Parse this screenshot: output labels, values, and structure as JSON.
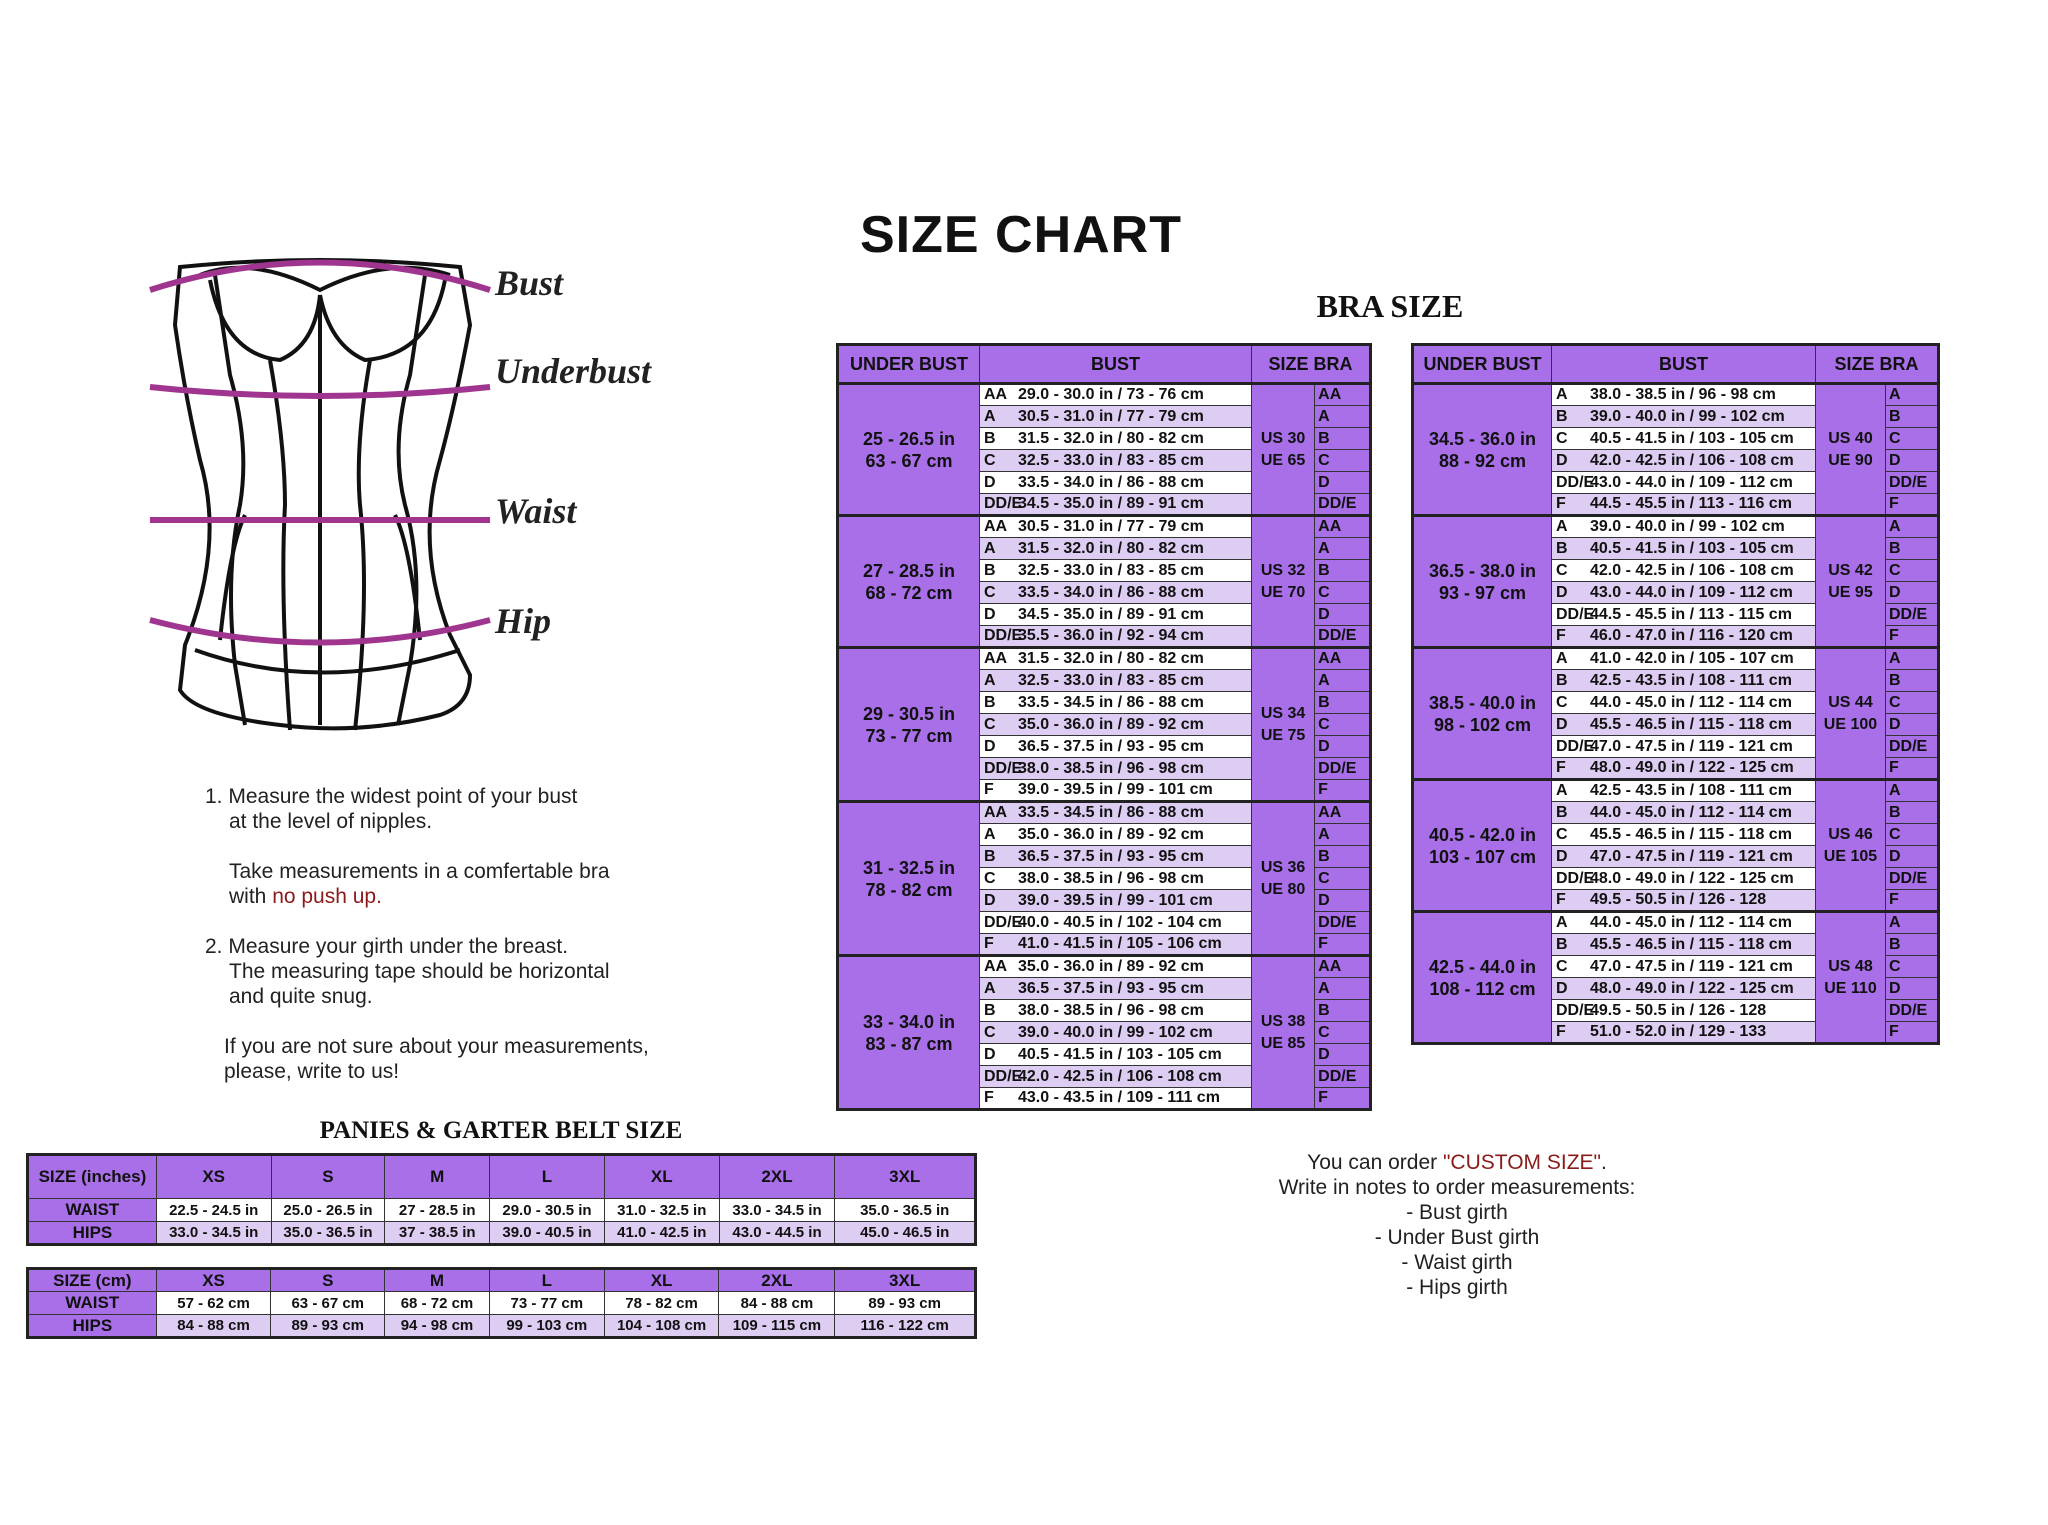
{
  "title": "SIZE CHART",
  "bra_title": "BRA SIZE",
  "colors": {
    "header_purple": "#a86fe8",
    "row_lavender": "#ddcdf2",
    "measure_line": "#a0358f",
    "accent_red": "#8b1a1a"
  },
  "diagram_labels": {
    "bust": "Bust",
    "underbust": "Underbust",
    "waist": "Waist",
    "hip": "Hip"
  },
  "instructions": {
    "step1_line1": "1. Measure the widest point of your bust",
    "step1_line2": "at the level of nipples.",
    "bra_note_line1": "Take measurements in a comfertable bra",
    "bra_note_pre": "with ",
    "bra_note_red": "no push up.",
    "step2_line1": "2. Measure your girth under the breast.",
    "step2_line2": "The measuring tape should be horizontal",
    "step2_line3": "and quite snug.",
    "unsure_line1": "If you are not sure about your measurements,",
    "unsure_line2": "please, write to us!"
  },
  "bra_headers": [
    "UNDER BUST",
    "BUST",
    "SIZE BRA"
  ],
  "bra_left": [
    {
      "ub": [
        "25 - 26.5 in",
        "63 - 67 cm"
      ],
      "us": [
        "US 30",
        "UE 65"
      ],
      "rows": [
        [
          "AA",
          "29.0 - 30.0 in / 73 - 76 cm"
        ],
        [
          "A",
          "30.5 - 31.0  in / 77 - 79 cm"
        ],
        [
          "B",
          "31.5 - 32.0 in / 80 - 82 cm"
        ],
        [
          "C",
          "32.5 - 33.0 in / 83 - 85 cm"
        ],
        [
          "D",
          "33.5 - 34.0 in / 86 - 88 cm"
        ],
        [
          "DD/E",
          "34.5 - 35.0 in / 89 - 91 cm"
        ]
      ]
    },
    {
      "ub": [
        "27 - 28.5 in",
        "68 - 72 cm"
      ],
      "us": [
        "US 32",
        "UE 70"
      ],
      "rows": [
        [
          "AA",
          "30.5 - 31.0  in / 77 - 79 cm"
        ],
        [
          "A",
          "31.5 - 32.0 in / 80 - 82 cm"
        ],
        [
          "B",
          "32.5 - 33.0 in / 83 - 85 cm"
        ],
        [
          "C",
          "33.5 - 34.0 in / 86 - 88 cm"
        ],
        [
          "D",
          "34.5 - 35.0 in / 89 - 91 cm"
        ],
        [
          "DD/E",
          "35.5 - 36.0 in / 92 - 94 cm"
        ]
      ]
    },
    {
      "ub": [
        "29 - 30.5 in",
        "73 - 77 cm"
      ],
      "us": [
        "US 34",
        "UE 75"
      ],
      "rows": [
        [
          "AA",
          "31.5 - 32.0 in / 80 - 82 cm"
        ],
        [
          "A",
          "32.5 - 33.0 in / 83 - 85 cm"
        ],
        [
          "B",
          "33.5 - 34.5 in / 86 - 88 cm"
        ],
        [
          "C",
          "35.0 - 36.0 in / 89 - 92 cm"
        ],
        [
          "D",
          "36.5 - 37.5 in / 93 - 95 cm"
        ],
        [
          "DD/E",
          "38.0 - 38.5 in / 96 - 98 cm"
        ],
        [
          "F",
          "39.0 - 39.5 in / 99 - 101 cm"
        ]
      ]
    },
    {
      "ub": [
        "31 - 32.5 in",
        "78 - 82 cm"
      ],
      "us": [
        "US 36",
        "UE 80"
      ],
      "rows": [
        [
          "AA",
          "33.5 - 34.5 in / 86 - 88 cm"
        ],
        [
          "A",
          "35.0 - 36.0 in / 89 - 92 cm"
        ],
        [
          "B",
          "36.5 - 37.5 in / 93 - 95 cm"
        ],
        [
          "C",
          "38.0 - 38.5 in / 96 - 98 cm"
        ],
        [
          "D",
          "39.0 - 39.5 in / 99 - 101 cm"
        ],
        [
          "DD/E",
          "40.0 - 40.5 in / 102 - 104 cm"
        ],
        [
          "F",
          "41.0 - 41.5 in / 105 - 106 cm"
        ]
      ]
    },
    {
      "ub": [
        "33 - 34.0 in",
        "83 - 87 cm"
      ],
      "us": [
        "US 38",
        "UE 85"
      ],
      "rows": [
        [
          "AA",
          "35.0 - 36.0 in / 89 - 92 cm"
        ],
        [
          "A",
          "36.5 - 37.5 in / 93 - 95 cm"
        ],
        [
          "B",
          "38.0 - 38.5 in / 96 - 98 cm"
        ],
        [
          "C",
          "39.0 - 40.0 in / 99 - 102 cm"
        ],
        [
          "D",
          "40.5 - 41.5 in / 103 - 105 cm"
        ],
        [
          "DD/E",
          "42.0 - 42.5 in / 106 - 108 cm"
        ],
        [
          "F",
          "43.0 - 43.5 in / 109 - 111 cm"
        ]
      ]
    }
  ],
  "bra_right": [
    {
      "ub": [
        "34.5 - 36.0 in",
        "88 - 92 cm"
      ],
      "us": [
        "US 40",
        "UE 90"
      ],
      "rows": [
        [
          "A",
          "38.0 - 38.5 in / 96 - 98 cm"
        ],
        [
          "B",
          "39.0 - 40.0 in / 99 - 102 cm"
        ],
        [
          "C",
          "40.5 - 41.5 in / 103 - 105 cm"
        ],
        [
          "D",
          "42.0 - 42.5 in / 106 - 108 cm"
        ],
        [
          "DD/E",
          "43.0 - 44.0 in / 109 - 112 cm"
        ],
        [
          "F",
          "44.5 - 45.5 in / 113 - 116 cm"
        ]
      ]
    },
    {
      "ub": [
        "36.5 - 38.0 in",
        "93 - 97 cm"
      ],
      "us": [
        "US 42",
        "UE 95"
      ],
      "rows": [
        [
          "A",
          "39.0 - 40.0 in / 99 - 102 cm"
        ],
        [
          "B",
          "40.5 - 41.5 in / 103 - 105 cm"
        ],
        [
          "C",
          "42.0 - 42.5 in / 106 - 108 cm"
        ],
        [
          "D",
          "43.0 - 44.0 in / 109 - 112 cm"
        ],
        [
          "DD/E",
          "44.5 - 45.5 in / 113 - 115 cm"
        ],
        [
          "F",
          "46.0 - 47.0 in / 116 - 120 cm"
        ]
      ]
    },
    {
      "ub": [
        "38.5 - 40.0 in",
        "98 - 102 cm"
      ],
      "us": [
        "US 44",
        "UE 100"
      ],
      "rows": [
        [
          "A",
          "41.0 - 42.0 in / 105 - 107 cm"
        ],
        [
          "B",
          "42.5 - 43.5 in / 108 - 111 cm"
        ],
        [
          "C",
          "44.0 - 45.0 in / 112 - 114 cm"
        ],
        [
          "D",
          "45.5 - 46.5 in / 115 - 118 cm"
        ],
        [
          "DD/E",
          "47.0 - 47.5 in / 119 - 121 cm"
        ],
        [
          "F",
          "48.0 - 49.0 in / 122 - 125 cm"
        ]
      ]
    },
    {
      "ub": [
        "40.5 - 42.0 in",
        "103 - 107 cm"
      ],
      "us": [
        "US 46",
        "UE 105"
      ],
      "rows": [
        [
          "A",
          "42.5 - 43.5 in / 108 - 111 cm"
        ],
        [
          "B",
          "44.0 - 45.0 in / 112 - 114 cm"
        ],
        [
          "C",
          "45.5 - 46.5 in / 115 - 118 cm"
        ],
        [
          "D",
          "47.0 - 47.5 in / 119 - 121 cm"
        ],
        [
          "DD/E",
          "48.0 - 49.0 in / 122 - 125 cm"
        ],
        [
          "F",
          "49.5 - 50.5 in / 126 - 128"
        ]
      ]
    },
    {
      "ub": [
        "42.5 - 44.0 in",
        "108 - 112 cm"
      ],
      "us": [
        "US 48",
        "UE 110"
      ],
      "rows": [
        [
          "A",
          "44.0 - 45.0 in / 112 - 114 cm"
        ],
        [
          "B",
          "45.5 - 46.5 in / 115 - 118 cm"
        ],
        [
          "C",
          "47.0 - 47.5 in / 119 - 121 cm"
        ],
        [
          "D",
          "48.0 - 49.0 in / 122 - 125 cm"
        ],
        [
          "DD/E",
          "49.5 - 50.5 in / 126 - 128"
        ],
        [
          "F",
          "51.0 - 52.0 in / 129 - 133"
        ]
      ]
    }
  ],
  "panties_title": "PANIES & GARTER BELT SIZE",
  "panties_sizes": [
    "XS",
    "S",
    "M",
    "L",
    "XL",
    "2XL",
    "3XL"
  ],
  "panties_inches": {
    "header": "SIZE (inches)",
    "rows": [
      {
        "label": "WAIST",
        "values": [
          "22.5 - 24.5 in",
          "25.0 - 26.5 in",
          "27 - 28.5 in",
          "29.0 - 30.5  in",
          "31.0 - 32.5 in",
          "33.0 - 34.5 in",
          "35.0 - 36.5 in"
        ]
      },
      {
        "label": "HIPS",
        "values": [
          "33.0 - 34.5 in",
          "35.0 - 36.5 in",
          "37 - 38.5 in",
          "39.0 - 40.5 in",
          "41.0 - 42.5 in",
          "43.0 - 44.5 in",
          "45.0 - 46.5 in"
        ]
      }
    ]
  },
  "panties_cm": {
    "header": "SIZE (cm)",
    "rows": [
      {
        "label": "WAIST",
        "values": [
          "57 - 62 cm",
          "63 - 67 cm",
          "68 - 72 cm",
          "73 - 77 cm",
          "78 - 82 cm",
          "84 - 88 cm",
          "89 - 93 cm"
        ]
      },
      {
        "label": "HIPS",
        "values": [
          "84 - 88 cm",
          "89 - 93 cm",
          "94 - 98 cm",
          "99 - 103 cm",
          "104 - 108 cm",
          "109 - 115 cm",
          "116 - 122 cm"
        ]
      }
    ]
  },
  "custom": {
    "line1_pre": "You can order ",
    "line1_red": "\"CUSTOM SIZE\"",
    "line1_post": ".",
    "line2": "Write in notes to order measurements:",
    "items": [
      "- Bust girth",
      "- Under Bust girth",
      "- Waist girth",
      "- Hips girth"
    ]
  }
}
